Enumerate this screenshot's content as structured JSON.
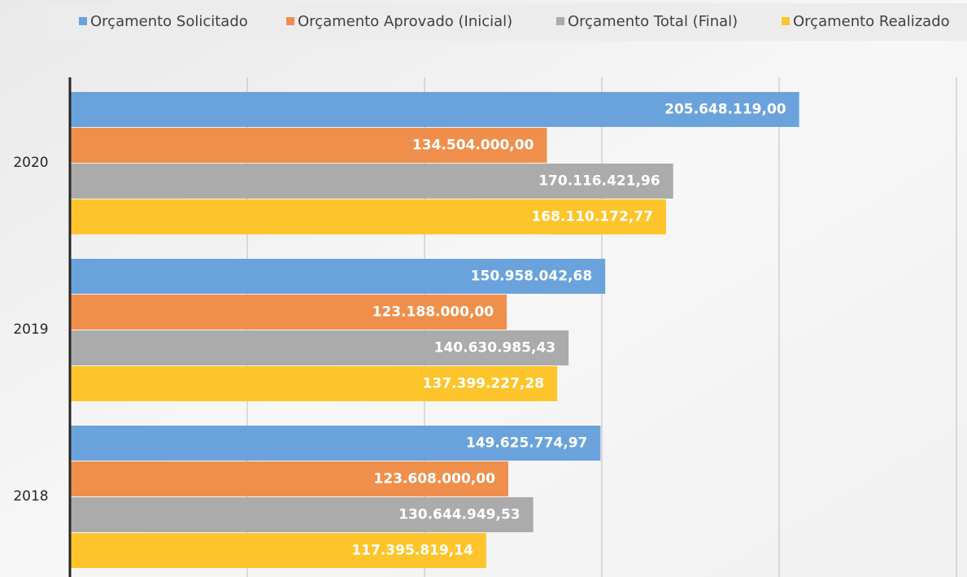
{
  "chart_data": {
    "type": "bar",
    "orientation": "horizontal",
    "categories": [
      "2020",
      "2019",
      "2018"
    ],
    "series": [
      {
        "name": "Orçamento Solicitado",
        "color": "#6aa3dc",
        "values": [
          205648119.0,
          150958042.68,
          149625774.97
        ],
        "value_labels": [
          "205.648.119,00",
          "150.958.042,68",
          "149.625.774,97"
        ]
      },
      {
        "name": "Orçamento Aprovado (Inicial)",
        "color": "#f08f4c",
        "values": [
          134504000.0,
          123188000.0,
          123608000.0
        ],
        "value_labels": [
          "134.504.000,00",
          "123.188.000,00",
          "123.608.000,00"
        ]
      },
      {
        "name": "Orçamento Total (Final)",
        "color": "#ababab",
        "values": [
          170116421.96,
          140630985.43,
          130644949.53
        ],
        "value_labels": [
          "170.116.421,96",
          "140.630.985,43",
          "130.644.949,53"
        ]
      },
      {
        "name": "Orçamento Realizado",
        "color": "#fdc52b",
        "values": [
          168110172.77,
          137399227.28,
          117395819.14
        ],
        "value_labels": [
          "168.110.172,77",
          "137.399.227,28",
          "117.395.819,14"
        ]
      }
    ],
    "xlim": [
      0,
      250000000
    ],
    "xticks": [
      0,
      50000000,
      100000000,
      150000000,
      200000000,
      250000000
    ],
    "grid": true,
    "legend": "top"
  }
}
